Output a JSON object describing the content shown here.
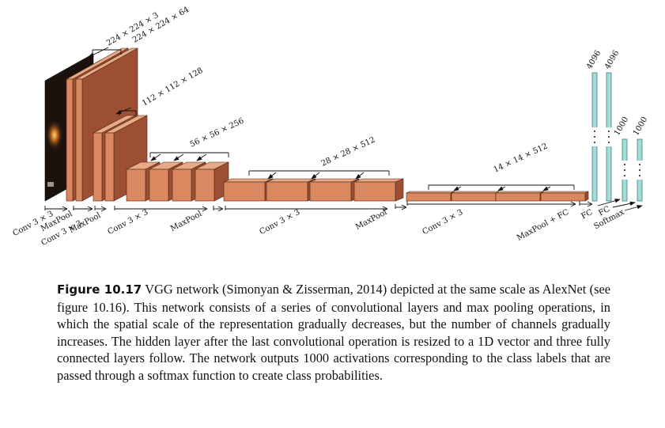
{
  "diagram": {
    "layer_dims": [
      "224 × 224 × 3",
      "224 × 224 × 64",
      "112 × 112 × 128",
      "56 × 56 × 256",
      "28 × 28 × 512",
      "14 × 14 × 512",
      "4096",
      "4096",
      "1000",
      "1000"
    ],
    "operations": [
      "Conv 3 × 3",
      "MaxPool",
      "Conv 3 × 3",
      "MaxPool",
      "Conv 3 × 3",
      "MaxPool",
      "Conv 3 × 3",
      "MaxPool",
      "Conv 3 × 3",
      "MaxPool + FC",
      "FC",
      "FC",
      "Softmax"
    ],
    "colors": {
      "conv_front": "#d9885f",
      "conv_top": "#e8aa84",
      "conv_side": "#9c4f33",
      "fc_fill": "#a3dcd9",
      "image_dark": "#1c120d"
    }
  },
  "caption": {
    "label": "Figure 10.17",
    "text": "VGG network (Simonyan & Zisserman, 2014) depicted at the same scale as AlexNet (see figure 10.16). This network consists of a series of convolutional layers and max pooling operations, in which the spatial scale of the representation gradually decreases, but the number of channels gradually increases. The hidden layer after the last convolutional operation is resized to a 1D vector and three fully connected layers follow. The network outputs 1000 activations corresponding to the class labels that are passed through a softmax function to create class probabilities."
  }
}
